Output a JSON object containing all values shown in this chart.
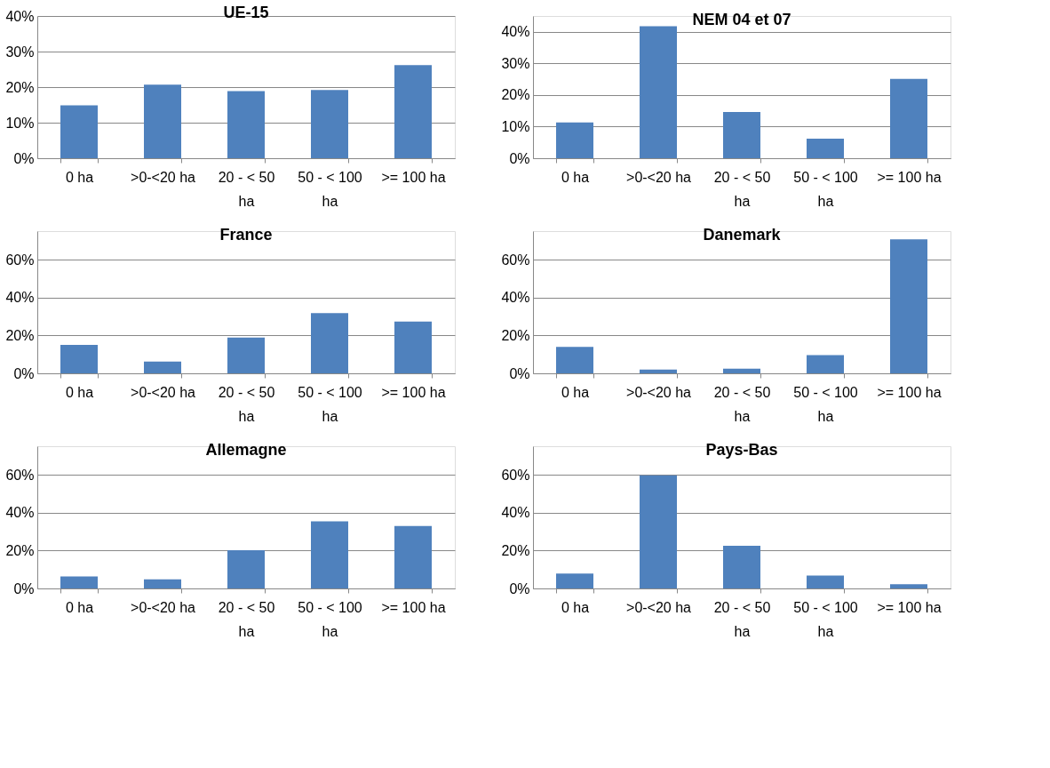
{
  "chart_data": [
    {
      "type": "bar",
      "title": "UE-15",
      "categories": [
        "0 ha",
        ">0-<20 ha",
        "20 - < 50 ha",
        "50 - < 100 ha",
        ">= 100 ha"
      ],
      "values": [
        14.9,
        20.7,
        18.9,
        19.2,
        26.2
      ],
      "color": "#4f81bd",
      "ylim": [
        0,
        40
      ],
      "yticks": [
        {
          "value": 0,
          "label": "0%"
        },
        {
          "value": 10,
          "label": "10%"
        },
        {
          "value": 20,
          "label": "20%"
        },
        {
          "value": 30,
          "label": "30%"
        },
        {
          "value": 40,
          "label": "40%"
        }
      ],
      "grid": "y",
      "legend": false
    },
    {
      "type": "bar",
      "title": "NEM 04 et 07",
      "categories": [
        "0 ha",
        ">0-<20 ha",
        "20 - < 50 ha",
        "50 - < 100 ha",
        ">= 100 ha"
      ],
      "values": [
        11.3,
        41.8,
        14.6,
        6.2,
        25.1
      ],
      "color": "#4f81bd",
      "ylim": [
        0,
        45
      ],
      "yticks": [
        {
          "value": 0,
          "label": "0%"
        },
        {
          "value": 10,
          "label": "10%"
        },
        {
          "value": 20,
          "label": "20%"
        },
        {
          "value": 30,
          "label": "30%"
        },
        {
          "value": 40,
          "label": "40%"
        }
      ],
      "grid": "y",
      "legend": false
    },
    {
      "type": "bar",
      "title": "France",
      "categories": [
        "0 ha",
        ">0-<20 ha",
        "20 - < 50 ha",
        "50 - < 100 ha",
        ">= 100 ha"
      ],
      "values": [
        15.0,
        6.2,
        18.9,
        31.8,
        27.3
      ],
      "color": "#4f81bd",
      "ylim": [
        0,
        75
      ],
      "yticks": [
        {
          "value": 0,
          "label": "0%"
        },
        {
          "value": 20,
          "label": "20%"
        },
        {
          "value": 40,
          "label": "40%"
        },
        {
          "value": 60,
          "label": "60%"
        }
      ],
      "grid": "y",
      "legend": false
    },
    {
      "type": "bar",
      "title": "Danemark",
      "categories": [
        "0 ha",
        ">0-<20 ha",
        "20 - < 50 ha",
        "50 - < 100 ha",
        ">= 100 ha"
      ],
      "values": [
        14.0,
        2.0,
        2.5,
        9.6,
        70.7
      ],
      "color": "#4f81bd",
      "ylim": [
        0,
        75
      ],
      "yticks": [
        {
          "value": 0,
          "label": "0%"
        },
        {
          "value": 20,
          "label": "20%"
        },
        {
          "value": 40,
          "label": "40%"
        },
        {
          "value": 60,
          "label": "60%"
        }
      ],
      "grid": "y",
      "legend": false
    },
    {
      "type": "bar",
      "title": "Allemagne",
      "categories": [
        "0 ha",
        ">0-<20 ha",
        "20 - < 50 ha",
        "50 - < 100 ha",
        ">= 100 ha"
      ],
      "values": [
        6.3,
        4.8,
        20.2,
        35.4,
        32.9
      ],
      "color": "#4f81bd",
      "ylim": [
        0,
        75
      ],
      "yticks": [
        {
          "value": 0,
          "label": "0%"
        },
        {
          "value": 20,
          "label": "20%"
        },
        {
          "value": 40,
          "label": "40%"
        },
        {
          "value": 60,
          "label": "60%"
        }
      ],
      "grid": "y",
      "legend": false
    },
    {
      "type": "bar",
      "title": "Pays-Bas",
      "categories": [
        "0 ha",
        ">0-<20 ha",
        "20 - < 50 ha",
        "50 - < 100 ha",
        ">= 100 ha"
      ],
      "values": [
        7.8,
        59.7,
        22.5,
        6.8,
        2.2
      ],
      "color": "#4f81bd",
      "ylim": [
        0,
        75
      ],
      "yticks": [
        {
          "value": 0,
          "label": "0%"
        },
        {
          "value": 20,
          "label": "20%"
        },
        {
          "value": 40,
          "label": "40%"
        },
        {
          "value": 60,
          "label": "60%"
        }
      ],
      "grid": "y",
      "legend": false
    }
  ]
}
